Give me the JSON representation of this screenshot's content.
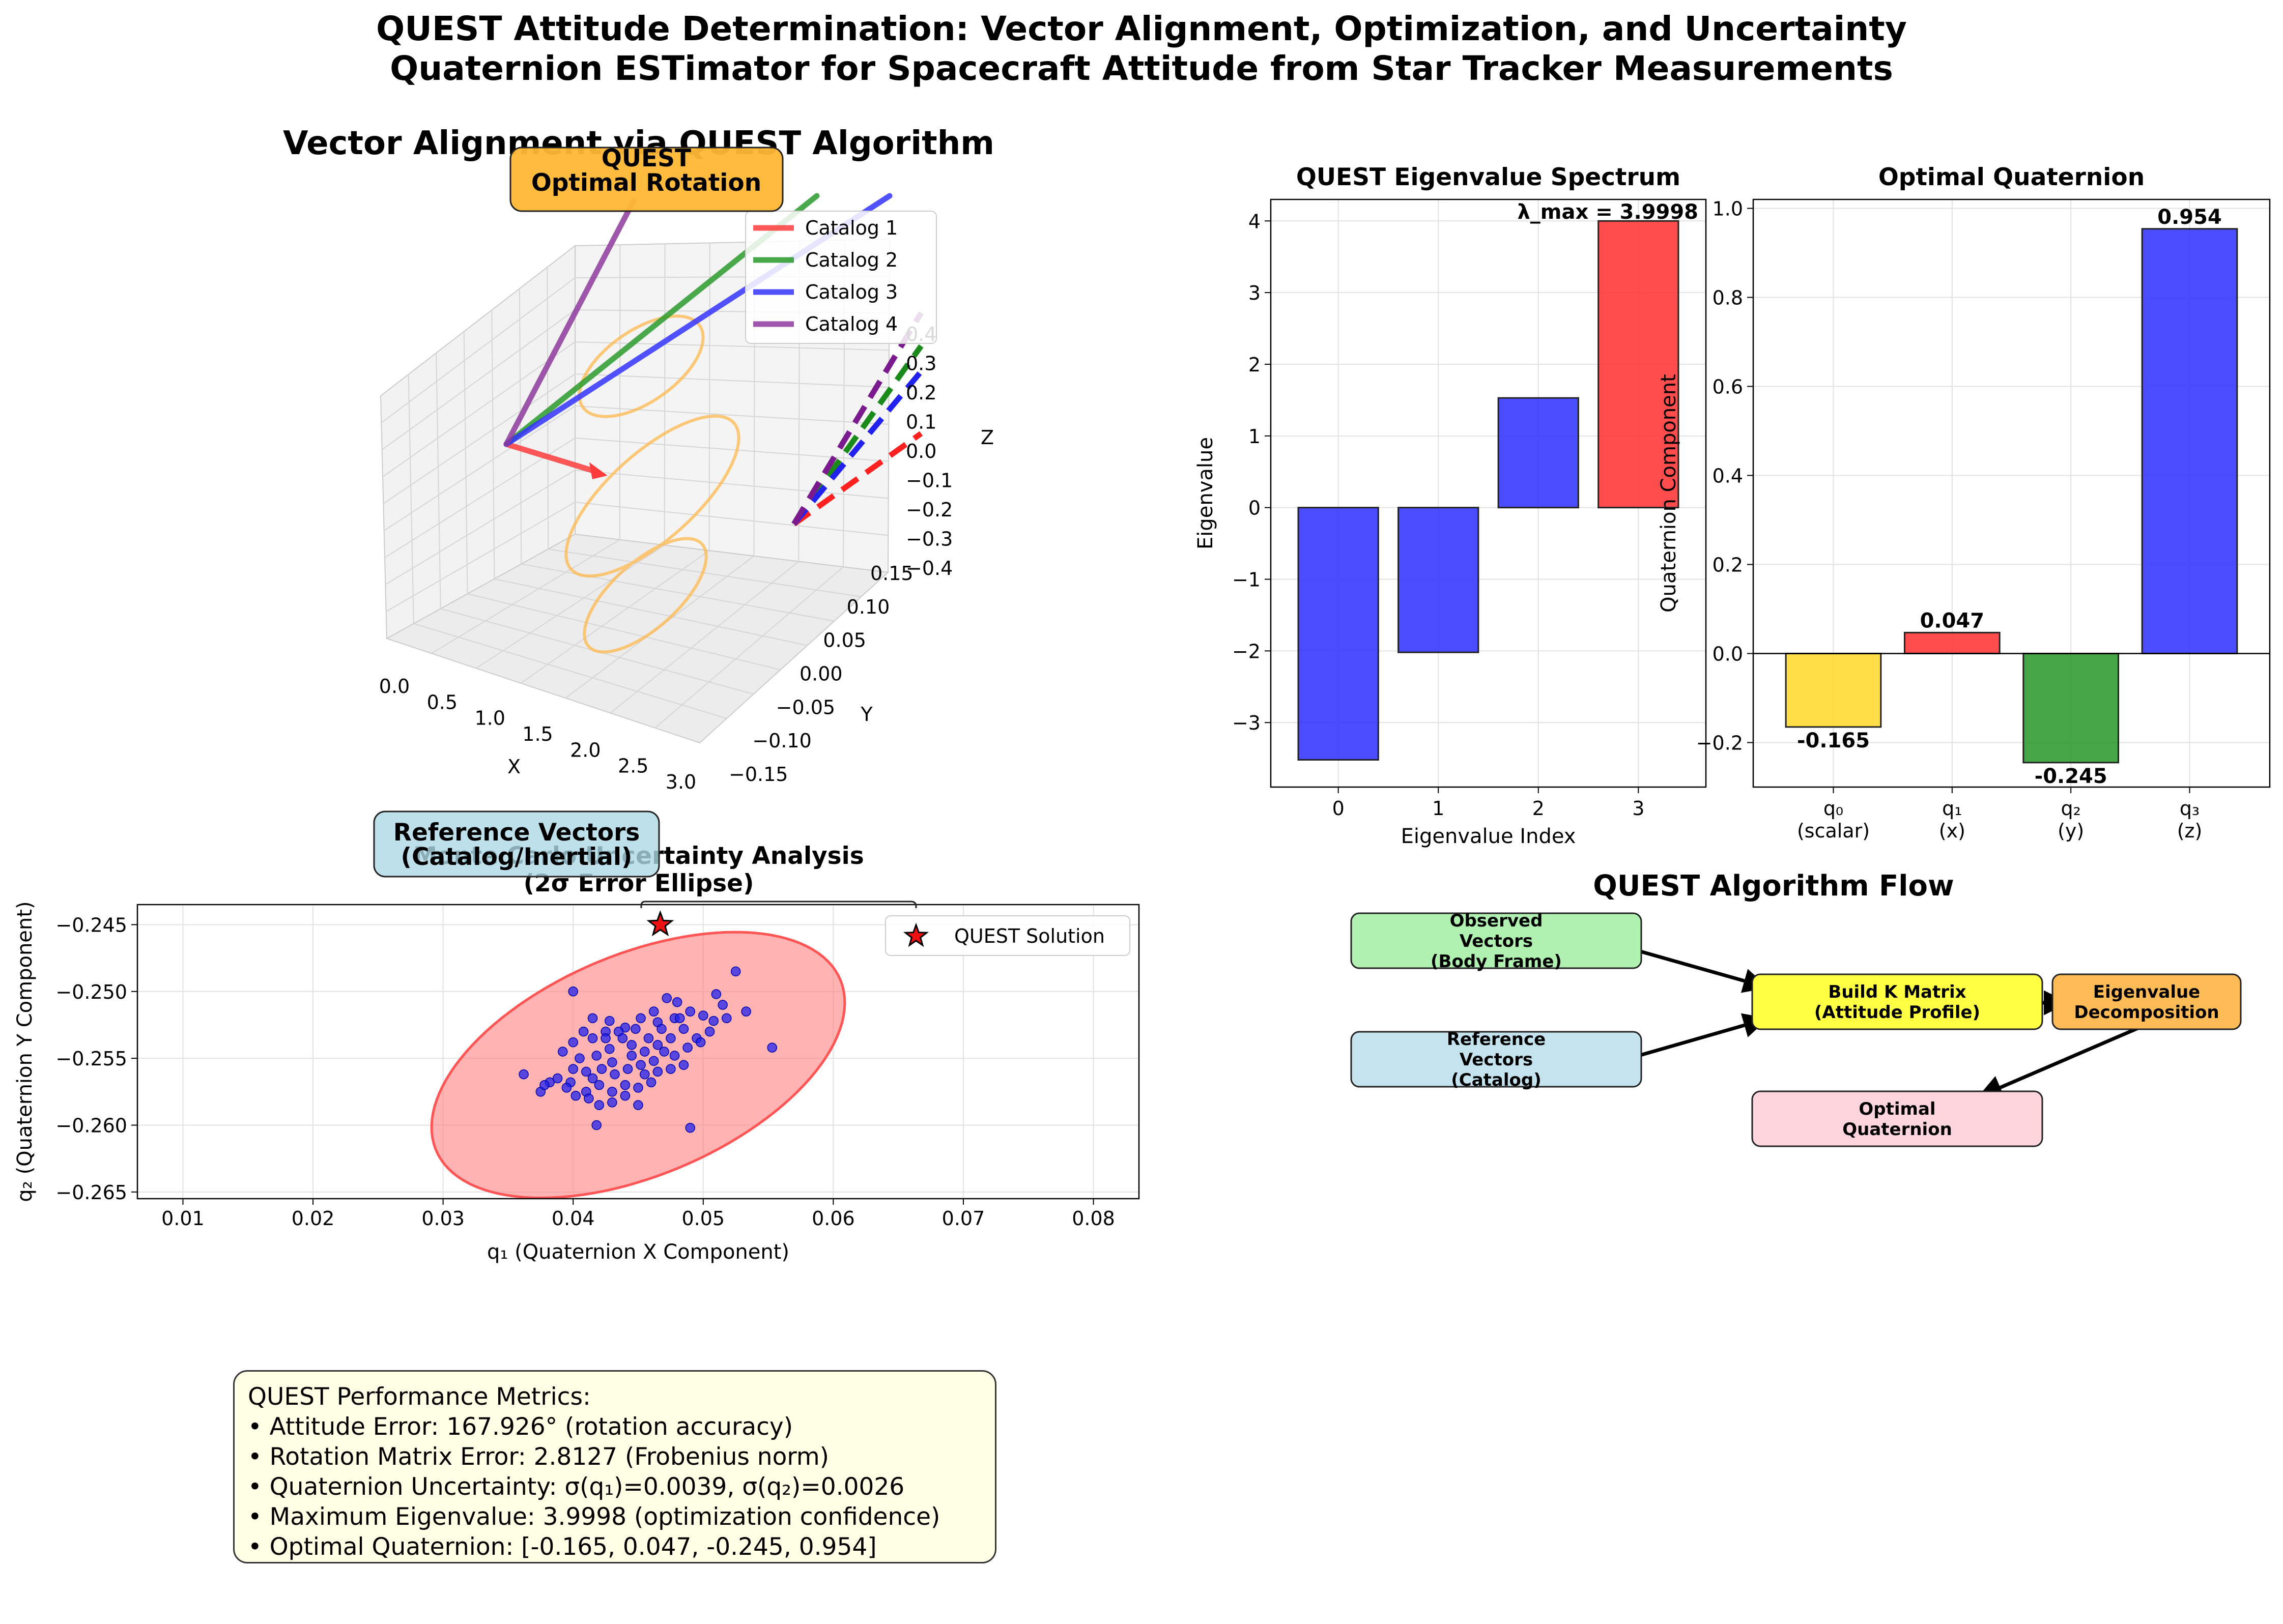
{
  "figure": {
    "title_line1": "QUEST Attitude Determination: Vector Alignment, Optimization, and Uncertainty",
    "title_line2": "Quaternion ESTimator for Spacecraft Attitude from Star Tracker Measurements"
  },
  "panel3d": {
    "title": "Vector Alignment via QUEST Algorithm",
    "rotation_box": "QUEST\nOptimal Rotation",
    "reference_box": "Reference Vectors\n(Catalog/Inertial)",
    "xlabel": "X",
    "ylabel": "Y",
    "zlabel": "Z",
    "x_ticks": [
      "0.0",
      "0.5",
      "1.0",
      "1.5",
      "2.0",
      "2.5",
      "3.0"
    ],
    "y_ticks": [
      "−0.15",
      "−0.10",
      "−0.05",
      "0.00",
      "0.05",
      "0.10",
      "0.15"
    ],
    "z_ticks": [
      "−0.4",
      "−0.3",
      "−0.2",
      "−0.1",
      "0.0",
      "0.1",
      "0.2",
      "0.3",
      "0.4"
    ],
    "legend": [
      {
        "label": "Catalog 1",
        "color": "#ff3b3b"
      },
      {
        "label": "Catalog 2",
        "color": "#2a9a2a"
      },
      {
        "label": "Catalog 3",
        "color": "#3333ff"
      },
      {
        "label": "Catalog 4",
        "color": "#8e3a9e"
      }
    ],
    "ellipse_color": "#ffb84d"
  },
  "chart_data": [
    {
      "type": "bar",
      "title": "QUEST Eigenvalue Spectrum",
      "xlabel": "Eigenvalue Index",
      "ylabel": "Eigenvalue",
      "categories": [
        "0",
        "1",
        "2",
        "3"
      ],
      "values": [
        -3.52,
        -2.02,
        1.53,
        3.9998
      ],
      "colors": [
        "#3333ff",
        "#3333ff",
        "#3333ff",
        "#ff3333"
      ],
      "ylim": [
        -3.9,
        4.3
      ],
      "yticks": [
        -3,
        -2,
        -1,
        0,
        1,
        2,
        3,
        4
      ],
      "annotation": "λ_max = 3.9998",
      "grid": true
    },
    {
      "type": "bar",
      "title": "Optimal Quaternion",
      "ylabel": "Quaternion Component",
      "categories": [
        "q₀\n(scalar)",
        "q₁\n(x)",
        "q₂\n(y)",
        "q₃\n(z)"
      ],
      "values": [
        -0.165,
        0.047,
        -0.245,
        0.954
      ],
      "value_labels": [
        "-0.165",
        "0.047",
        "-0.245",
        "0.954"
      ],
      "colors": [
        "#ffd92f",
        "#ff3333",
        "#2a9a2a",
        "#3333ff"
      ],
      "ylim": [
        -0.3,
        1.02
      ],
      "yticks": [
        -0.2,
        0.0,
        0.2,
        0.4,
        0.6,
        0.8,
        1.0
      ],
      "grid": true
    },
    {
      "type": "scatter",
      "title": "Monte Carlo Uncertainty Analysis\n(2σ Error Ellipse)",
      "xlabel": "q₁ (Quaternion X Component)",
      "ylabel": "q₂ (Quaternion Y Component)",
      "xlim": [
        0.0065,
        0.0835
      ],
      "ylim": [
        -0.2655,
        -0.2435
      ],
      "xticks": [
        0.01,
        0.02,
        0.03,
        0.04,
        0.05,
        0.06,
        0.07,
        0.08
      ],
      "yticks": [
        -0.265,
        -0.26,
        -0.255,
        -0.25,
        -0.245
      ],
      "legend": [
        "QUEST Solution"
      ],
      "solution": [
        0.0467,
        -0.245
      ],
      "ellipse": {
        "center": [
          0.045,
          -0.2555
        ],
        "semi_major": 0.0168,
        "semi_minor": 0.0083,
        "angle_deg": 22
      },
      "points": [
        [
          0.04,
          -0.25
        ],
        [
          0.0415,
          -0.252
        ],
        [
          0.0428,
          -0.2522
        ],
        [
          0.044,
          -0.2527
        ],
        [
          0.0452,
          -0.252
        ],
        [
          0.0465,
          -0.2523
        ],
        [
          0.0472,
          -0.2505
        ],
        [
          0.048,
          -0.2508
        ],
        [
          0.049,
          -0.2515
        ],
        [
          0.05,
          -0.2518
        ],
        [
          0.051,
          -0.2502
        ],
        [
          0.0525,
          -0.2485
        ],
        [
          0.0515,
          -0.251
        ],
        [
          0.0505,
          -0.253
        ],
        [
          0.0495,
          -0.2535
        ],
        [
          0.0485,
          -0.2528
        ],
        [
          0.0475,
          -0.2535
        ],
        [
          0.0465,
          -0.254
        ],
        [
          0.0455,
          -0.2545
        ],
        [
          0.0445,
          -0.254
        ],
        [
          0.0435,
          -0.253
        ],
        [
          0.0425,
          -0.253
        ],
        [
          0.0415,
          -0.2535
        ],
        [
          0.0408,
          -0.253
        ],
        [
          0.04,
          -0.2538
        ],
        [
          0.0392,
          -0.2545
        ],
        [
          0.0405,
          -0.255
        ],
        [
          0.0418,
          -0.2548
        ],
        [
          0.043,
          -0.2553
        ],
        [
          0.0442,
          -0.2558
        ],
        [
          0.0452,
          -0.2555
        ],
        [
          0.0462,
          -0.2552
        ],
        [
          0.047,
          -0.2545
        ],
        [
          0.0478,
          -0.2548
        ],
        [
          0.0488,
          -0.2542
        ],
        [
          0.0498,
          -0.2538
        ],
        [
          0.0508,
          -0.2522
        ],
        [
          0.0518,
          -0.252
        ],
        [
          0.0533,
          -0.2515
        ],
        [
          0.0553,
          -0.2542
        ],
        [
          0.0362,
          -0.2562
        ],
        [
          0.0375,
          -0.2575
        ],
        [
          0.0382,
          -0.2568
        ],
        [
          0.0388,
          -0.2565
        ],
        [
          0.0398,
          -0.2568
        ],
        [
          0.041,
          -0.2575
        ],
        [
          0.042,
          -0.257
        ],
        [
          0.043,
          -0.2575
        ],
        [
          0.044,
          -0.257
        ],
        [
          0.045,
          -0.2572
        ],
        [
          0.046,
          -0.2568
        ],
        [
          0.045,
          -0.2585
        ],
        [
          0.044,
          -0.2578
        ],
        [
          0.043,
          -0.2583
        ],
        [
          0.042,
          -0.2585
        ],
        [
          0.0412,
          -0.258
        ],
        [
          0.0402,
          -0.2578
        ],
        [
          0.0395,
          -0.2572
        ],
        [
          0.0378,
          -0.257
        ],
        [
          0.0418,
          -0.26
        ],
        [
          0.049,
          -0.2602
        ],
        [
          0.0445,
          -0.2548
        ],
        [
          0.0458,
          -0.2535
        ],
        [
          0.0468,
          -0.2528
        ],
        [
          0.0478,
          -0.252
        ],
        [
          0.0448,
          -0.2528
        ],
        [
          0.0438,
          -0.2535
        ],
        [
          0.0428,
          -0.2543
        ],
        [
          0.0455,
          -0.2562
        ],
        [
          0.0465,
          -0.256
        ],
        [
          0.0475,
          -0.2558
        ],
        [
          0.0485,
          -0.2555
        ],
        [
          0.0432,
          -0.2562
        ],
        [
          0.0422,
          -0.2558
        ],
        [
          0.041,
          -0.256
        ],
        [
          0.04,
          -0.2558
        ],
        [
          0.0415,
          -0.2565
        ],
        [
          0.0425,
          -0.2535
        ],
        [
          0.0462,
          -0.2515
        ],
        [
          0.0482,
          -0.252
        ]
      ],
      "grid": true
    }
  ],
  "flow": {
    "title": "QUEST Algorithm Flow",
    "boxes": [
      {
        "text": "Observed\nVectors\n(Body Frame)",
        "fill": "#b0f0b0"
      },
      {
        "text": "Reference\nVectors\n(Catalog)",
        "fill": "#c5e3ee"
      },
      {
        "text": "Build K Matrix\n(Attitude Profile)",
        "fill": "#ffff44"
      },
      {
        "text": "Eigenvalue\nDecomposition",
        "fill": "#ffbb55"
      },
      {
        "text": "Optimal\nQuaternion",
        "fill": "#ffd5dd"
      }
    ]
  },
  "metrics": {
    "lines": [
      "QUEST Performance Metrics:",
      "• Attitude Error: 167.926° (rotation accuracy)",
      "• Rotation Matrix Error: 2.8127 (Frobenius norm)",
      "• Quaternion Uncertainty: σ(q₁)=0.0039, σ(q₂)=0.0026",
      "• Maximum Eigenvalue: 3.9998 (optimization confidence)",
      "• Optimal Quaternion: [-0.165, 0.047, -0.245, 0.954]"
    ]
  }
}
